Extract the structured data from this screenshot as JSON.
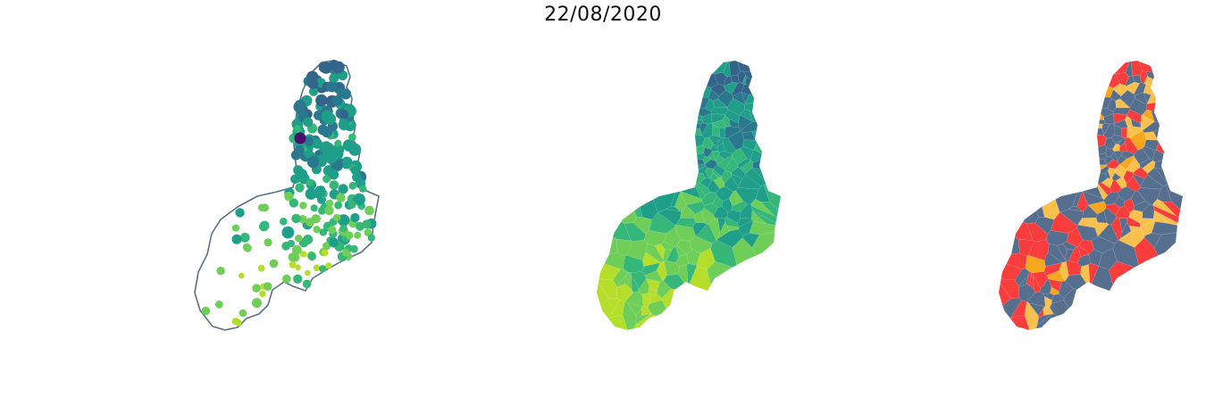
{
  "figure": {
    "title": "22/08/2020"
  },
  "colors": {
    "outline": "#5a6f8c",
    "viridis": [
      "#46106b",
      "#33658a",
      "#2a788e",
      "#1f9e89",
      "#35b779",
      "#6ece58",
      "#b5de2b",
      "#fde725"
    ],
    "categorical": [
      "#576f8f",
      "#f93d3d",
      "#f9c04e",
      "#f7a71d"
    ]
  },
  "panels": [
    {
      "name": "points-map",
      "kind": "proportional-points"
    },
    {
      "name": "choropleth-map",
      "kind": "continuous-choropleth"
    },
    {
      "name": "category-map",
      "kind": "categorical-choropleth"
    }
  ]
}
